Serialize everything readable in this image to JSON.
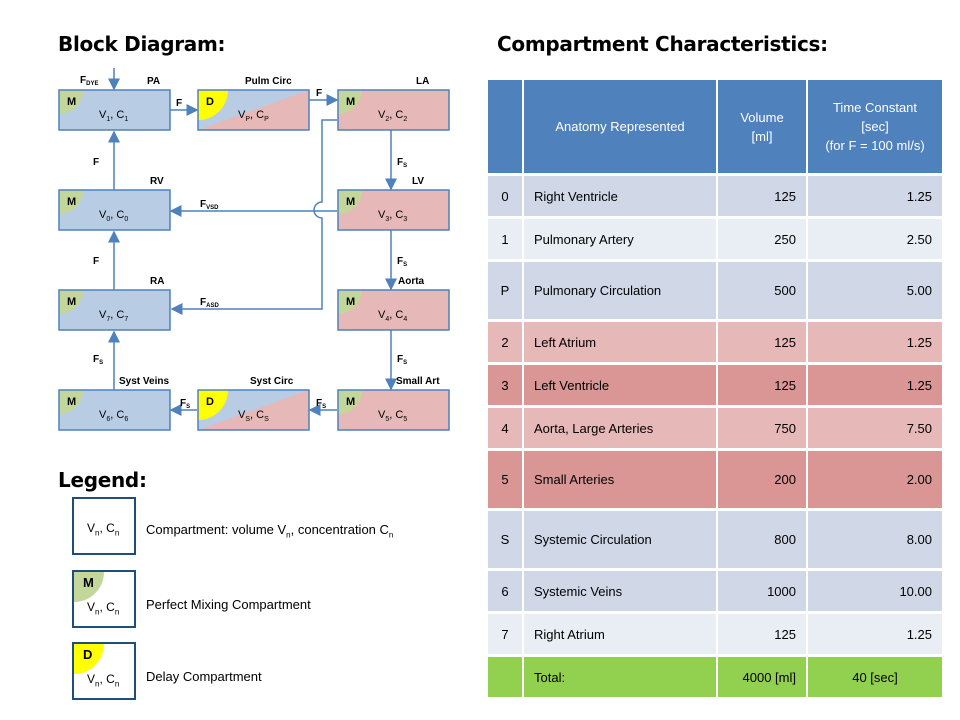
{
  "headings": {
    "block_diagram": "Block Diagram:",
    "compartment_characteristics": "Compartment Characteristics:",
    "legend": "Legend:"
  },
  "diagram": {
    "blocks": [
      {
        "id": "v1",
        "corner": "M",
        "main": "V",
        "sub": "1",
        "sep": ", C",
        "sub2": "1",
        "title": "PA",
        "fill": "blue"
      },
      {
        "id": "vp",
        "corner": "D",
        "main": "V",
        "sub": "P",
        "sep": ", C",
        "sub2": "P",
        "title": "Pulm Circ",
        "fill": "mix"
      },
      {
        "id": "v2",
        "corner": "M",
        "main": "V",
        "sub": "2",
        "sep": ", C",
        "sub2": "2",
        "title": "LA",
        "fill": "pink"
      },
      {
        "id": "v0",
        "corner": "M",
        "main": "V",
        "sub": "0",
        "sep": ", C",
        "sub2": "0",
        "title": "RV",
        "fill": "blue"
      },
      {
        "id": "v3",
        "corner": "M",
        "main": "V",
        "sub": "3",
        "sep": ", C",
        "sub2": "3",
        "title": "LV",
        "fill": "pink"
      },
      {
        "id": "v7",
        "corner": "M",
        "main": "V",
        "sub": "7",
        "sep": ", C",
        "sub2": "7",
        "title": "RA",
        "fill": "blue"
      },
      {
        "id": "v4",
        "corner": "M",
        "main": "V",
        "sub": "4",
        "sep": ", C",
        "sub2": "4",
        "title": "Aorta",
        "fill": "pink"
      },
      {
        "id": "v6",
        "corner": "M",
        "main": "V",
        "sub": "6",
        "sep": ", C",
        "sub2": "6",
        "title": "Syst Veins",
        "fill": "blue"
      },
      {
        "id": "vs",
        "corner": "D",
        "main": "V",
        "sub": "S",
        "sep": ", C",
        "sub2": "S",
        "title": "Syst Circ",
        "fill": "mix"
      },
      {
        "id": "v5",
        "corner": "M",
        "main": "V",
        "sub": "5",
        "sep": ", C",
        "sub2": "5",
        "title": "Small Art",
        "fill": "pink"
      }
    ],
    "flow_labels": {
      "fdye": {
        "main": "F",
        "sub": "DYE"
      },
      "f_pa_pc": {
        "main": "F",
        "sub": ""
      },
      "f_pc_la": {
        "main": "F",
        "sub": ""
      },
      "f_rv_pa": {
        "main": "F",
        "sub": ""
      },
      "f_ra_rv": {
        "main": "F",
        "sub": ""
      },
      "fs_la_lv": {
        "main": "F",
        "sub": "S"
      },
      "fs_lv_ao": {
        "main": "F",
        "sub": "S"
      },
      "fs_ao_sa": {
        "main": "F",
        "sub": "S"
      },
      "fs_sa_sc": {
        "main": "F",
        "sub": "S"
      },
      "fs_sc_sv": {
        "main": "F",
        "sub": "S"
      },
      "fs_sv_ra": {
        "main": "F",
        "sub": "S"
      },
      "fvsd": {
        "main": "F",
        "sub": "VSD"
      },
      "fasd": {
        "main": "F",
        "sub": "ASD"
      }
    },
    "colors": {
      "blue": "#b8cce4",
      "pink": "#e6b8b7",
      "mix_green": "#c4d79b",
      "yellow": "#ffff00",
      "border": "#4f81bd",
      "arrow": "#4f81bd"
    }
  },
  "table": {
    "headers": [
      "",
      "Anatomy Represented",
      "Volume\n[ml]",
      "Time Constant\n[sec]\n(for F = 100 ml/s)"
    ],
    "rows": [
      {
        "id": "0",
        "name": "Right Ventricle",
        "volume": "125",
        "tc": "1.25",
        "style": "blue1"
      },
      {
        "id": "1",
        "name": "Pulmonary Artery",
        "volume": "250",
        "tc": "2.50",
        "style": "blue2"
      },
      {
        "id": "P",
        "name": "Pulmonary Circulation",
        "volume": "500",
        "tc": "5.00",
        "style": "blue1",
        "tall": true
      },
      {
        "id": "2",
        "name": "Left Atrium",
        "volume": "125",
        "tc": "1.25",
        "style": "pink1"
      },
      {
        "id": "3",
        "name": "Left Ventricle",
        "volume": "125",
        "tc": "1.25",
        "style": "pink2"
      },
      {
        "id": "4",
        "name": "Aorta, Large Arteries",
        "volume": "750",
        "tc": "7.50",
        "style": "pink1"
      },
      {
        "id": "5",
        "name": "Small Arteries",
        "volume": "200",
        "tc": "2.00",
        "style": "pink2",
        "tall": true
      },
      {
        "id": "S",
        "name": "Systemic Circulation",
        "volume": "800",
        "tc": "8.00",
        "style": "blue1",
        "tall": true
      },
      {
        "id": "6",
        "name": "Systemic Veins",
        "volume": "1000",
        "tc": "10.00",
        "style": "blue1"
      },
      {
        "id": "7",
        "name": "Right Atrium",
        "volume": "125",
        "tc": "1.25",
        "style": "blue2"
      }
    ],
    "total": {
      "label": "Total:",
      "volume": "4000 [ml]",
      "tc": "40 [sec]"
    }
  },
  "legend": {
    "items": [
      {
        "corner": "",
        "vc_main": "V",
        "vc_sub": "n",
        "vc_sep": ", C",
        "vc_sub2": "n",
        "text_pre": "Compartment: volume V",
        "text_sub1": "n",
        "text_mid": ", concentration C",
        "text_sub2": "n"
      },
      {
        "corner": "M",
        "vc_main": "V",
        "vc_sub": "n",
        "vc_sep": ", C",
        "vc_sub2": "n",
        "text": "Perfect Mixing Compartment"
      },
      {
        "corner": "D",
        "vc_main": "V",
        "vc_sub": "n",
        "vc_sep": ", C",
        "vc_sub2": "n",
        "text": "Delay Compartment"
      }
    ]
  }
}
